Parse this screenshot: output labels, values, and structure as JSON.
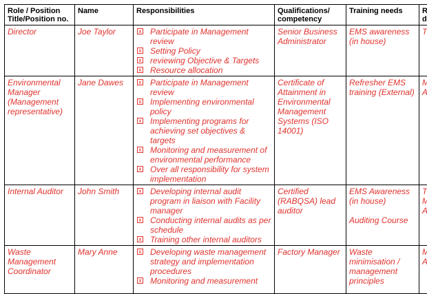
{
  "headers": {
    "role": "Role / Position Title/Position no.",
    "name": "Name",
    "responsibilities": "Responsibilities",
    "qualifications": "Qualifications/ competency",
    "training": "Training needs",
    "extra": "R d"
  },
  "rows": [
    {
      "role": "Director",
      "name": "Joe Taylor",
      "responsibilities": [
        "Participate in Management review",
        "Setting Policy",
        "reviewing Objective  & Targets",
        "Resource allocation"
      ],
      "qualifications": "Senior Business Administrator",
      "training": "EMS awareness (in house)",
      "training2": "",
      "extra": "T"
    },
    {
      "role": "Environmental Manager (Management representative)",
      "name": "Jane Dawes",
      "responsibilities": [
        "Participate in Management review",
        "Implementing environmental policy",
        "Implementing programs for achieving set  objectives  & targets",
        "Monitoring and measurement of environmental performance",
        "Over all responsibility for system implementation"
      ],
      "qualifications": "Certificate of Attainment in Environmental Management Systems (ISO 14001)",
      "training": "Refresher EMS training (External)",
      "training2": "",
      "extra": "M A"
    },
    {
      "role": "Internal Auditor",
      "name": "John Smith",
      "responsibilities": [
        "Developing internal audit program in liaison with Facility manager",
        "Conducting internal audits as per schedule",
        "Training other internal auditors"
      ],
      "qualifications": "Certified (RABQSA) lead auditor",
      "training": "EMS Awareness (in house)",
      "training2": "Auditing Course",
      "extra": "T M A"
    },
    {
      "role": "Waste Management Coordinator",
      "name": "Mary Anne",
      "responsibilities": [
        "Developing waste management strategy and implementation procedures",
        "Monitoring and measurement"
      ],
      "qualifications": "Factory Manager",
      "training": "Waste minimisation / management principles",
      "training2": "",
      "extra": "M A"
    }
  ]
}
